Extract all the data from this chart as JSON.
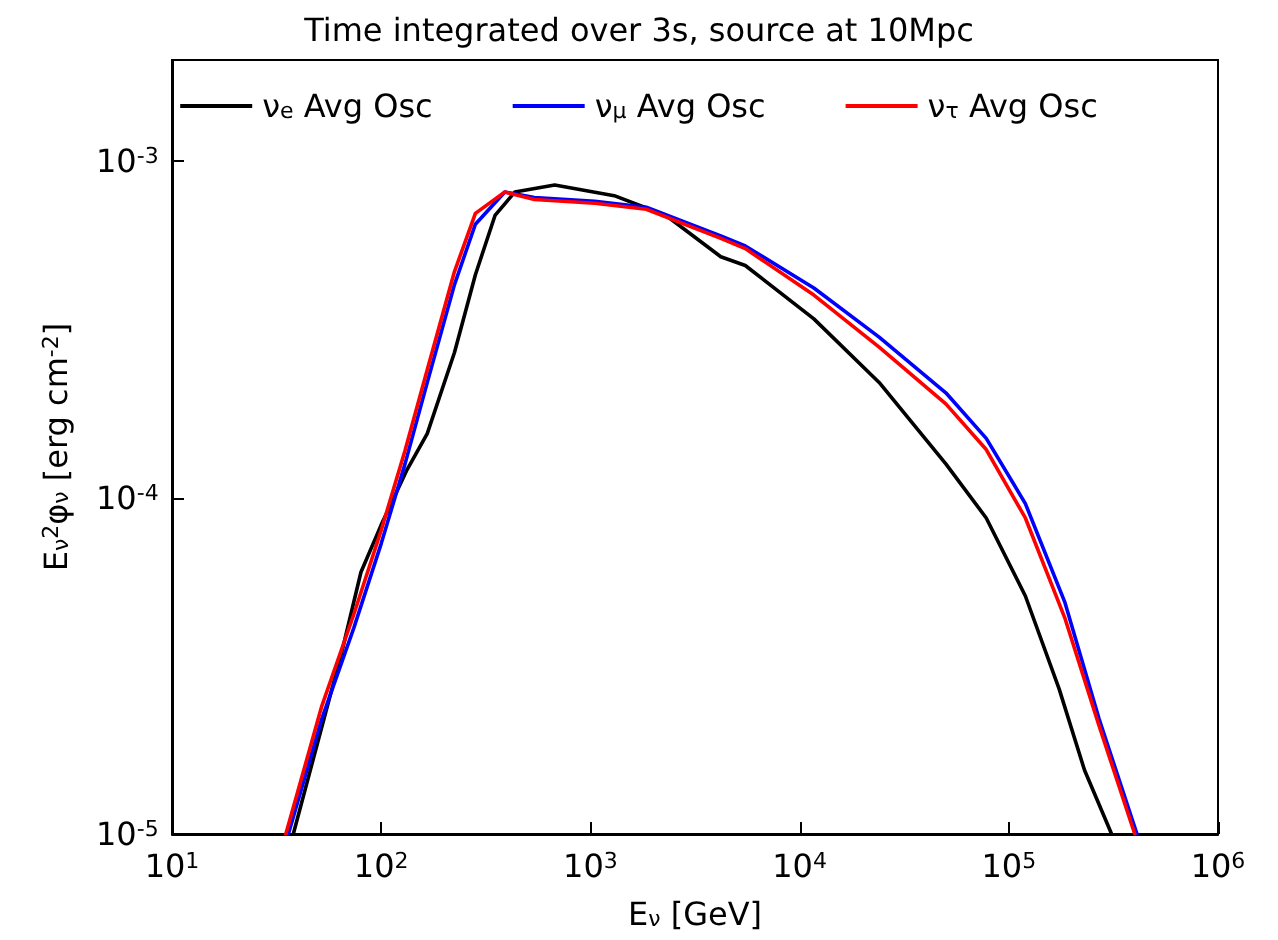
{
  "chart_data": {
    "type": "line",
    "title": "Time integrated over 3s, source at 10Mpc",
    "xlabel": "E$_{ν}$ [GeV]",
    "ylabel": "E$_{ν}$$^{2}$φ$_{ν}$ [erg cm$^{-2}$]",
    "log": "xy",
    "grid": false,
    "legend": "top",
    "marker": "none",
    "line_style": "solid",
    "xlim": [
      10,
      1000000
    ],
    "ylim": [
      1e-05,
      0.002
    ],
    "xticks": [
      {
        "value": 10,
        "label": "10$^{1}$"
      },
      {
        "value": 100,
        "label": "10$^{2}$"
      },
      {
        "value": 1000,
        "label": "10$^{3}$"
      },
      {
        "value": 10000,
        "label": "10$^{4}$"
      },
      {
        "value": 100000,
        "label": "10$^{5}$"
      },
      {
        "value": 1000000,
        "label": "10$^{6}$"
      }
    ],
    "yticks": [
      {
        "value": 1e-05,
        "label": "10$^{-5}$"
      },
      {
        "value": 0.0001,
        "label": "10$^{-4}$"
      },
      {
        "value": 0.001,
        "label": "10$^{-3}$"
      }
    ],
    "series": [
      {
        "name": "ν$_{e}$ Avg Osc",
        "color": "#000000",
        "x": [
          38,
          65,
          80,
          100,
          132,
          166,
          224,
          282,
          350,
          435,
          675,
          1300,
          2300,
          4200,
          5500,
          11700,
          24000,
          50000,
          78000,
          120000,
          174000,
          230000,
          310000
        ],
        "values": [
          1e-05,
          3.5e-05,
          6e-05,
          8.3e-05,
          0.00012,
          0.000155,
          0.00027,
          0.00046,
          0.00069,
          0.00081,
          0.00085,
          0.00079,
          0.00069,
          0.00052,
          0.00049,
          0.00034,
          0.00022,
          0.000126,
          8.7e-05,
          5.1e-05,
          2.7e-05,
          1.55e-05,
          1e-05
        ]
      },
      {
        "name": "ν$_{μ}$ Avg Osc",
        "color": "#0000ff",
        "x": [
          36,
          52,
          74,
          100,
          130,
          166,
          224,
          282,
          390,
          540,
          1050,
          1850,
          4200,
          5500,
          11700,
          24000,
          50000,
          78000,
          120000,
          185000,
          270000,
          410000
        ],
        "values": [
          1e-05,
          2.2e-05,
          4.1e-05,
          7.3e-05,
          0.000126,
          0.00022,
          0.00043,
          0.00065,
          0.00081,
          0.00078,
          0.00076,
          0.00073,
          0.0006,
          0.00056,
          0.00042,
          0.0003,
          0.000205,
          0.00015,
          9.6e-05,
          4.9e-05,
          2.2e-05,
          1e-05
        ]
      },
      {
        "name": "ν$_{τ}$ Avg Osc",
        "color": "#ff0000",
        "x": [
          35,
          52,
          74,
          100,
          130,
          166,
          224,
          282,
          390,
          540,
          1050,
          1850,
          4200,
          5500,
          11700,
          24000,
          50000,
          78000,
          120000,
          185000,
          270000,
          400000
        ],
        "values": [
          1e-05,
          2.4e-05,
          4.5e-05,
          8e-05,
          0.000138,
          0.00024,
          0.00047,
          0.0007,
          0.00081,
          0.00077,
          0.00075,
          0.00072,
          0.00059,
          0.00055,
          0.0004,
          0.00028,
          0.00019,
          0.000139,
          8.7e-05,
          4.4e-05,
          2.1e-05,
          1e-05
        ]
      }
    ]
  }
}
